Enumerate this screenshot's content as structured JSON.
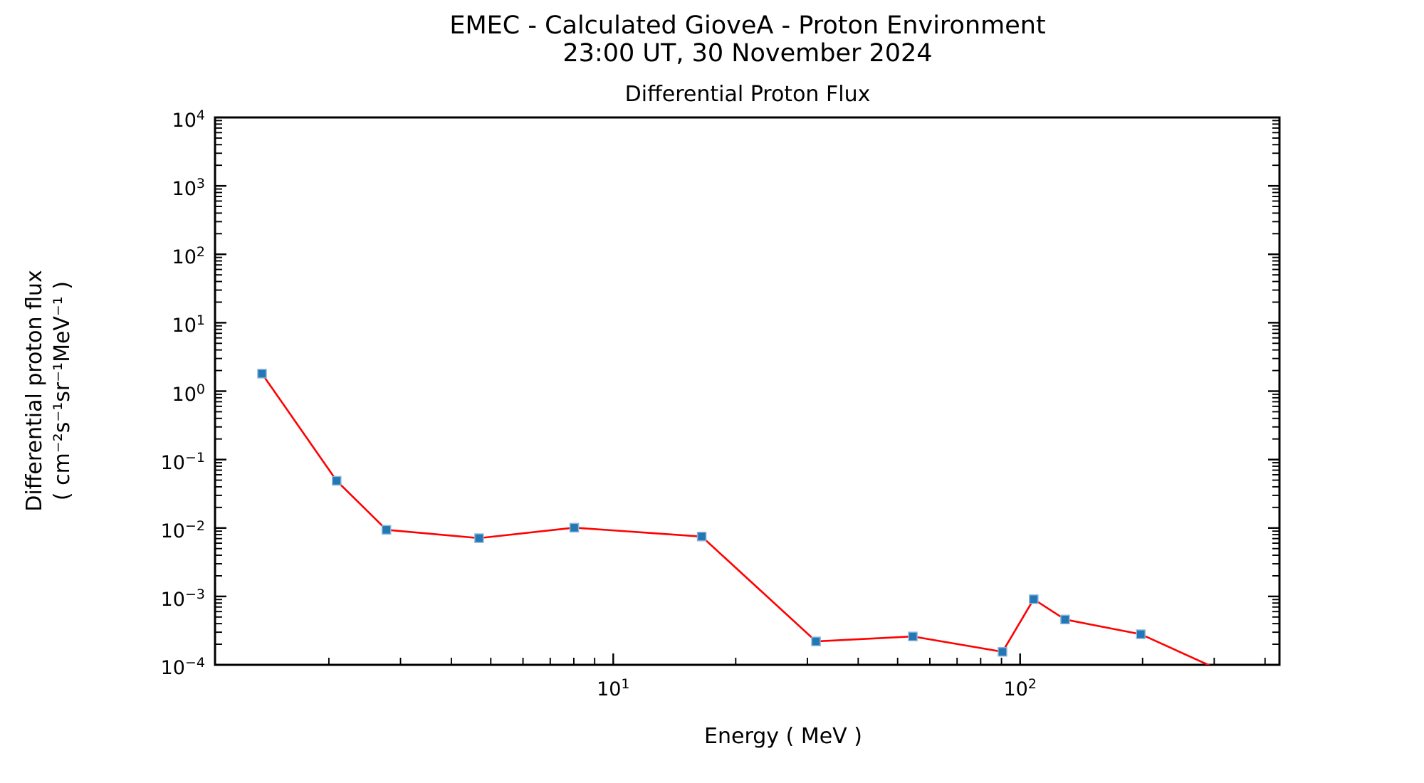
{
  "figure": {
    "suptitle_line1": "EMEC - Calculated GioveA - Proton Environment",
    "suptitle_line2": "23:00 UT, 30 November 2024"
  },
  "chart_data": {
    "type": "line",
    "title": "Differential Proton Flux",
    "xlabel": "Energy ( MeV )",
    "ylabel_line1": "Differential proton flux",
    "ylabel_line2": "( cm⁻²s⁻¹sr⁻¹MeV⁻¹ )",
    "x_scale": "log",
    "y_scale": "log",
    "xlim": [
      1.05,
      434
    ],
    "ylim": [
      0.0001,
      10000
    ],
    "x_major_tick_exponents": [
      1,
      2
    ],
    "y_major_tick_exponents": [
      4,
      3,
      2,
      1,
      0,
      -1,
      -2,
      -3,
      -4
    ],
    "grid": false,
    "legend": null,
    "colors": {
      "line": "#ff0000",
      "marker_fill": "#2277b4",
      "marker_edge": "#8ab6d9",
      "axis": "#000000"
    },
    "series": [
      {
        "name": "differential proton flux",
        "marker": "square",
        "x": [
          1.37,
          2.09,
          2.77,
          4.68,
          8.02,
          16.5,
          31.5,
          54.5,
          90.5,
          108,
          129,
          198,
          331
        ],
        "y": [
          1.8,
          0.049,
          0.0094,
          0.0071,
          0.0101,
          0.0075,
          0.00022,
          0.00026,
          0.000155,
          0.00091,
          0.00046,
          0.00028,
          7e-05
        ]
      }
    ]
  }
}
